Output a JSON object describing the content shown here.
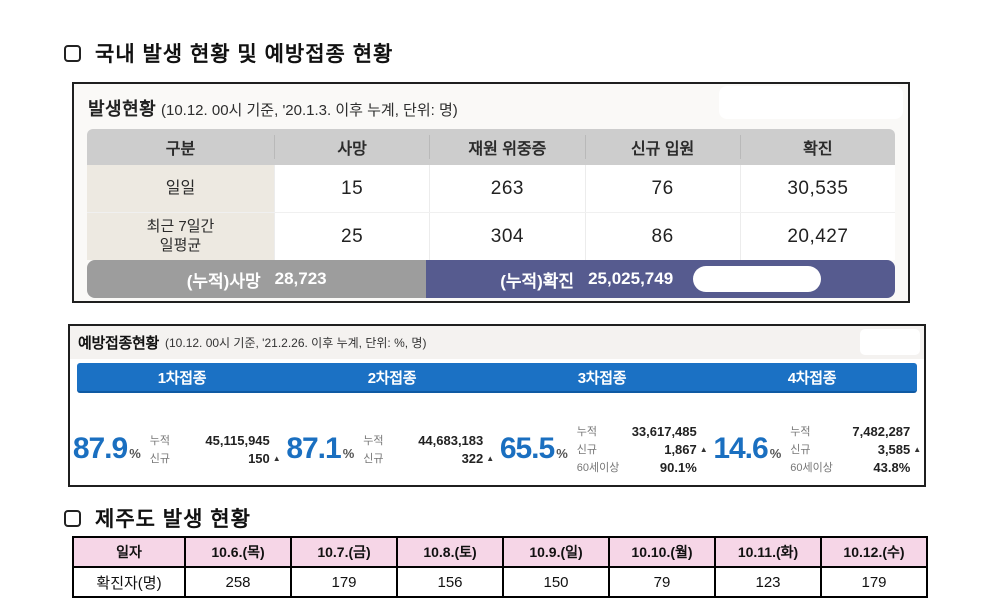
{
  "sections": {
    "domestic_title": "국내 발생 현황 및 예방접종 현황",
    "jeju_title": "제주도 발생 현황"
  },
  "outbreak": {
    "title": "발생현황",
    "subtitle": "(10.12. 00시 기준, '20.1.3. 이후 누계, 단위: 명)",
    "columns": [
      "구분",
      "사망",
      "재원 위중증",
      "신규 입원",
      "확진"
    ],
    "rows": [
      {
        "label": "일일",
        "death": "15",
        "severe": "263",
        "admission": "76",
        "confirmed": "30,535"
      },
      {
        "label": "최근 7일간\n일평균",
        "death": "25",
        "severe": "304",
        "admission": "86",
        "confirmed": "20,427"
      }
    ],
    "cumulative": {
      "death_label": "(누적)사망",
      "death_value": "28,723",
      "confirmed_label": "(누적)확진",
      "confirmed_value": "25,025,749"
    }
  },
  "vaccination": {
    "title": "예방접종현황",
    "subtitle": "(10.12. 00시 기준, '21.2.26. 이후 누계, 단위: %, 명)",
    "doses": [
      {
        "label": "1차접종",
        "percent": "87.9",
        "unit": "%",
        "cum_label": "누적",
        "cum_value": "45,115,945",
        "new_label": "신규",
        "new_value": "150",
        "arrow": "▲"
      },
      {
        "label": "2차접종",
        "percent": "87.1",
        "unit": "%",
        "cum_label": "누적",
        "cum_value": "44,683,183",
        "new_label": "신규",
        "new_value": "322",
        "arrow": "▲"
      },
      {
        "label": "3차접종",
        "percent": "65.5",
        "unit": "%",
        "cum_label": "누적",
        "cum_value": "33,617,485",
        "new_label": "신규",
        "new_value": "1,867",
        "arrow": "▲",
        "senior_label": "60세이상",
        "senior_value": "90.1%"
      },
      {
        "label": "4차접종",
        "percent": "14.6",
        "unit": "%",
        "cum_label": "누적",
        "cum_value": "7,482,287",
        "new_label": "신규",
        "new_value": "3,585",
        "arrow": "▲",
        "senior_label": "60세이상",
        "senior_value": "43.8%"
      }
    ]
  },
  "jeju": {
    "date_header": "일자",
    "dates": [
      "10.6.(목)",
      "10.7.(금)",
      "10.8.(토)",
      "10.9.(일)",
      "10.10.(월)",
      "10.11.(화)",
      "10.12.(수)"
    ],
    "row_label": "확진자(명)",
    "counts": [
      "258",
      "179",
      "156",
      "150",
      "79",
      "123",
      "179"
    ]
  },
  "colors": {
    "header_gray": "#cdcdcd",
    "label_beige": "#ede9e1",
    "summary_gray": "#9d9d9d",
    "summary_navy": "#565b8f",
    "vaccine_blue": "#1b71c4",
    "percent_blue": "#1a6fc0",
    "jeju_pink": "#f6d6e7"
  }
}
